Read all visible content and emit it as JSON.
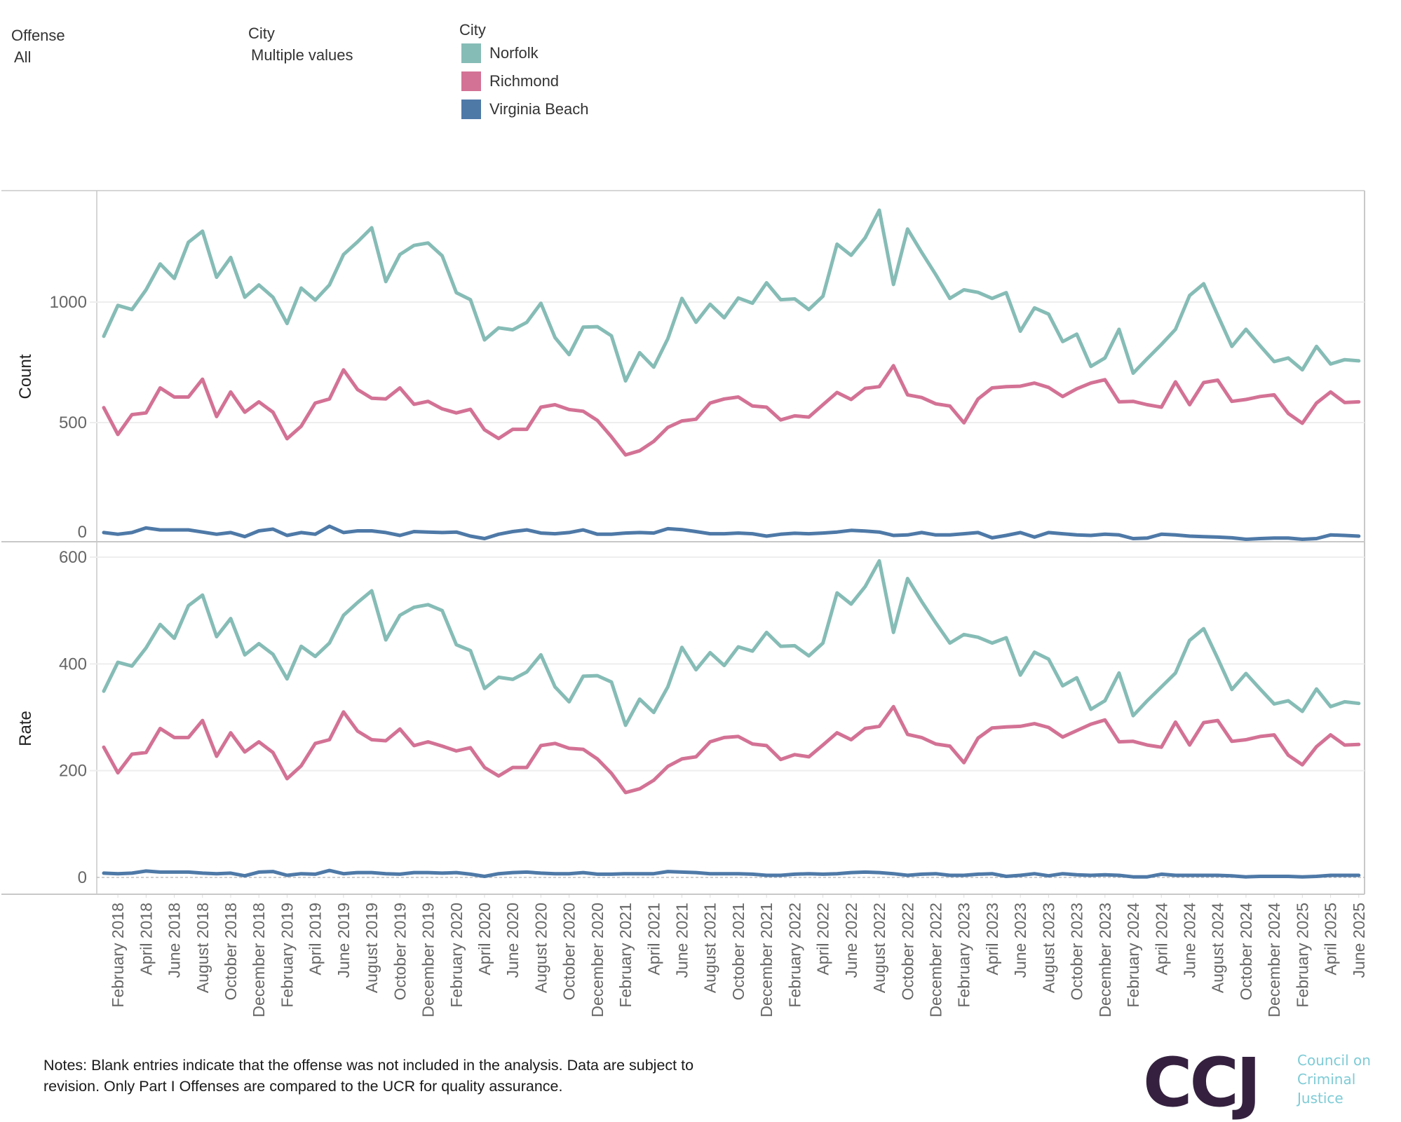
{
  "filters": [
    {
      "title": "Offense",
      "value": "All"
    },
    {
      "title": "City",
      "value": "Multiple values"
    }
  ],
  "legend": {
    "title": "City",
    "items": [
      {
        "label": "Norfolk",
        "color": "#86bcb6"
      },
      {
        "label": "Richmond",
        "color": "#d37295"
      },
      {
        "label": "Virginia Beach",
        "color": "#4e79a7"
      }
    ]
  },
  "notes": "Notes: Blank entries indicate that the offense was not included in the analysis. Data are subject to revision. Only Part I Offenses are compared to the UCR for quality assurance.",
  "logo": {
    "mark": "CCJ",
    "lines": [
      "Council on",
      "Criminal",
      "Justice"
    ]
  },
  "chart_data": [
    {
      "type": "line",
      "title": "",
      "ylabel": "Count",
      "xlabel": "",
      "ylim": [
        0,
        1420
      ],
      "yticks": [
        0,
        500,
        1000
      ],
      "grid": true,
      "x_start": "January 2018",
      "x_end": "June 2025",
      "x_tick_labels": [
        "February 2018",
        "April 2018",
        "June 2018",
        "August 2018",
        "October 2018",
        "December 2018",
        "February 2019",
        "April 2019",
        "June 2019",
        "August 2019",
        "October 2019",
        "December 2019",
        "February 2020",
        "April 2020",
        "June 2020",
        "August 2020",
        "October 2020",
        "December 2020",
        "February 2021",
        "April 2021",
        "June 2021",
        "August 2021",
        "October 2021",
        "December 2021",
        "February 2022",
        "April 2022",
        "June 2022",
        "August 2022",
        "October 2022",
        "December 2022",
        "February 2023",
        "April 2023",
        "June 2023",
        "August 2023",
        "October 2023",
        "December 2023",
        "February 2024",
        "April 2024",
        "June 2024",
        "August 2024",
        "October 2024",
        "December 2024",
        "February 2025",
        "April 2025",
        "June 2025"
      ],
      "series": [
        {
          "name": "Norfolk",
          "values": [
            858,
            986,
            969,
            1051,
            1158,
            1098,
            1248,
            1294,
            1103,
            1185,
            1020,
            1071,
            1020,
            911,
            1058,
            1008,
            1071,
            1197,
            1250,
            1308,
            1085,
            1197,
            1235,
            1245,
            1192,
            1039,
            1010,
            843,
            893,
            885,
            916,
            995,
            853,
            782,
            896,
            898,
            860,
            673,
            790,
            730,
            848,
            1015,
            916,
            991,
            935,
            1017,
            995,
            1080,
            1010,
            1013,
            969,
            1024,
            1240,
            1194,
            1267,
            1381,
            1073,
            1303,
            1206,
            1114,
            1015,
            1051,
            1040,
            1015,
            1039,
            879,
            976,
            950,
            836,
            867,
            733,
            768,
            887,
            705,
            765,
            824,
            887,
            1027,
            1076,
            945,
            816,
            887,
            819,
            753,
            768,
            719,
            816,
            743,
            761,
            756
          ]
        },
        {
          "name": "Richmond",
          "values": [
            562,
            451,
            533,
            540,
            644,
            606,
            606,
            680,
            525,
            627,
            543,
            586,
            543,
            433,
            485,
            581,
            598,
            719,
            637,
            601,
            598,
            644,
            576,
            588,
            557,
            540,
            555,
            470,
            434,
            472,
            472,
            564,
            574,
            554,
            547,
            509,
            441,
            366,
            383,
            422,
            480,
            507,
            514,
            581,
            598,
            606,
            569,
            564,
            511,
            528,
            523,
            574,
            625,
            596,
            642,
            649,
            736,
            615,
            604,
            578,
            569,
            499,
            598,
            644,
            649,
            651,
            664,
            646,
            608,
            640,
            664,
            678,
            586,
            588,
            574,
            564,
            669,
            574,
            666,
            676,
            588,
            596,
            608,
            615,
            538,
            497,
            581,
            627,
            583,
            586
          ]
        },
        {
          "name": "Virginia Beach",
          "values": [
            44,
            37,
            44,
            63,
            55,
            55,
            55,
            46,
            37,
            44,
            27,
            51,
            58,
            32,
            44,
            37,
            70,
            44,
            51,
            51,
            44,
            32,
            48,
            46,
            44,
            46,
            29,
            19,
            37,
            48,
            55,
            42,
            39,
            44,
            55,
            37,
            37,
            42,
            44,
            42,
            60,
            56,
            48,
            39,
            39,
            42,
            39,
            29,
            37,
            41,
            39,
            42,
            46,
            53,
            50,
            46,
            32,
            34,
            44,
            34,
            34,
            39,
            44,
            22,
            32,
            44,
            25,
            44,
            39,
            34,
            32,
            37,
            34,
            19,
            21,
            37,
            34,
            29,
            27,
            25,
            22,
            16,
            19,
            21,
            21,
            16,
            19,
            34,
            32,
            29
          ]
        }
      ]
    },
    {
      "type": "line",
      "title": "",
      "ylabel": "Rate",
      "xlabel": "",
      "ylim": [
        -25,
        620
      ],
      "yticks": [
        0,
        200,
        400,
        600
      ],
      "grid": true,
      "zero_line": "dashed",
      "x_start": "January 2018",
      "x_end": "June 2025",
      "series": [
        {
          "name": "Norfolk",
          "values": [
            349,
            403,
            396,
            430,
            474,
            448,
            509,
            529,
            451,
            485,
            417,
            438,
            418,
            372,
            433,
            414,
            439,
            491,
            515,
            537,
            445,
            491,
            506,
            511,
            500,
            436,
            425,
            354,
            375,
            371,
            385,
            417,
            357,
            329,
            377,
            378,
            366,
            285,
            334,
            309,
            357,
            431,
            389,
            421,
            397,
            432,
            424,
            459,
            433,
            434,
            415,
            439,
            533,
            512,
            545,
            593,
            459,
            560,
            517,
            477,
            439,
            455,
            450,
            439,
            449,
            379,
            422,
            409,
            359,
            374,
            315,
            331,
            383,
            303,
            331,
            357,
            383,
            444,
            466,
            410,
            352,
            382,
            353,
            325,
            331,
            311,
            353,
            320,
            329,
            326
          ]
        },
        {
          "name": "Richmond",
          "values": [
            244,
            196,
            231,
            234,
            279,
            262,
            262,
            294,
            227,
            271,
            235,
            254,
            234,
            185,
            209,
            251,
            258,
            310,
            274,
            258,
            256,
            278,
            247,
            254,
            246,
            237,
            243,
            206,
            190,
            206,
            206,
            247,
            251,
            242,
            240,
            222,
            195,
            159,
            166,
            182,
            208,
            222,
            226,
            254,
            262,
            264,
            250,
            247,
            221,
            230,
            226,
            248,
            271,
            258,
            279,
            283,
            320,
            268,
            262,
            250,
            246,
            215,
            261,
            280,
            282,
            283,
            288,
            281,
            263,
            275,
            287,
            295,
            254,
            255,
            248,
            244,
            291,
            248,
            290,
            294,
            255,
            258,
            264,
            267,
            229,
            211,
            245,
            267,
            248,
            249
          ]
        },
        {
          "name": "Virginia Beach",
          "values": [
            8,
            7,
            8,
            12,
            10,
            10,
            10,
            8,
            7,
            8,
            3,
            10,
            11,
            4,
            7,
            6,
            13,
            7,
            9,
            9,
            7,
            6,
            9,
            9,
            8,
            9,
            6,
            2,
            7,
            9,
            10,
            8,
            7,
            7,
            9,
            6,
            6,
            7,
            7,
            7,
            11,
            10,
            9,
            7,
            7,
            7,
            6,
            4,
            4,
            6,
            7,
            6,
            7,
            9,
            10,
            9,
            7,
            4,
            6,
            7,
            4,
            4,
            6,
            7,
            2,
            4,
            7,
            3,
            7,
            5,
            4,
            5,
            4,
            1,
            1,
            6,
            4,
            4,
            4,
            4,
            3,
            1,
            2,
            2,
            2,
            1,
            2,
            4,
            4,
            4
          ]
        }
      ]
    }
  ]
}
